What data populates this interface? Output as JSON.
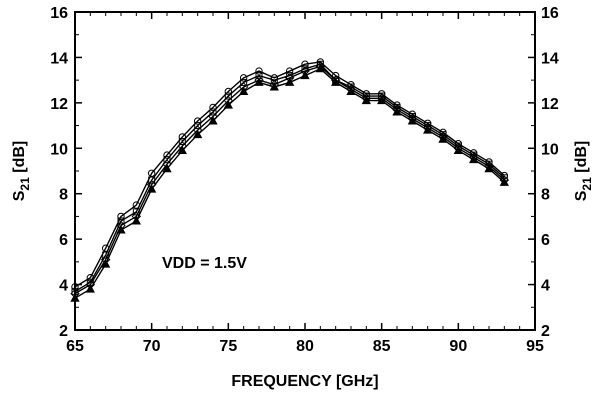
{
  "chart_data": {
    "type": "line",
    "xlabel": "FREQUENCY [GHz]",
    "ylabel_left": {
      "main": "S",
      "sub": "21",
      "unit": " [dB]"
    },
    "ylabel_right": {
      "main": "S",
      "sub": "21",
      "unit": " [dB]"
    },
    "xlim": [
      65,
      95
    ],
    "ylim": [
      2,
      16
    ],
    "xticks": [
      65,
      70,
      75,
      80,
      85,
      90,
      95
    ],
    "yticks": [
      2,
      4,
      6,
      8,
      10,
      12,
      14,
      16
    ],
    "annotation": "VDD = 1.5V",
    "grid": false,
    "x": [
      65,
      66,
      67,
      68,
      69,
      70,
      71,
      72,
      73,
      74,
      75,
      76,
      77,
      78,
      79,
      80,
      81,
      82,
      83,
      84,
      85,
      86,
      87,
      88,
      89,
      90,
      91,
      92,
      93
    ],
    "series": [
      {
        "marker": "circle",
        "values": [
          3.9,
          4.3,
          5.6,
          7.0,
          7.5,
          8.9,
          9.7,
          10.5,
          11.2,
          11.8,
          12.5,
          13.1,
          13.4,
          13.1,
          13.4,
          13.7,
          13.8,
          13.2,
          12.8,
          12.4,
          12.4,
          11.9,
          11.5,
          11.1,
          10.7,
          10.2,
          9.8,
          9.4,
          8.8
        ]
      },
      {
        "marker": "square",
        "values": [
          3.7,
          4.1,
          5.3,
          6.8,
          7.2,
          8.6,
          9.5,
          10.3,
          11.0,
          11.6,
          12.3,
          12.9,
          13.2,
          13.0,
          13.2,
          13.5,
          13.7,
          13.0,
          12.7,
          12.3,
          12.3,
          11.8,
          11.4,
          11.0,
          10.6,
          10.1,
          9.7,
          9.3,
          8.7
        ]
      },
      {
        "marker": "diamond",
        "values": [
          3.6,
          4.0,
          5.1,
          6.6,
          7.0,
          8.4,
          9.3,
          10.1,
          10.8,
          11.4,
          12.1,
          12.7,
          13.0,
          12.8,
          13.1,
          13.4,
          13.6,
          13.0,
          12.6,
          12.2,
          12.2,
          11.7,
          11.3,
          10.9,
          10.5,
          10.0,
          9.6,
          9.2,
          8.6
        ]
      },
      {
        "marker": "triangle",
        "values": [
          3.4,
          3.8,
          4.9,
          6.4,
          6.8,
          8.2,
          9.1,
          9.9,
          10.6,
          11.2,
          11.9,
          12.5,
          12.9,
          12.7,
          12.9,
          13.2,
          13.5,
          12.9,
          12.5,
          12.1,
          12.1,
          11.6,
          11.2,
          10.8,
          10.4,
          9.9,
          9.5,
          9.1,
          8.5
        ]
      }
    ]
  }
}
